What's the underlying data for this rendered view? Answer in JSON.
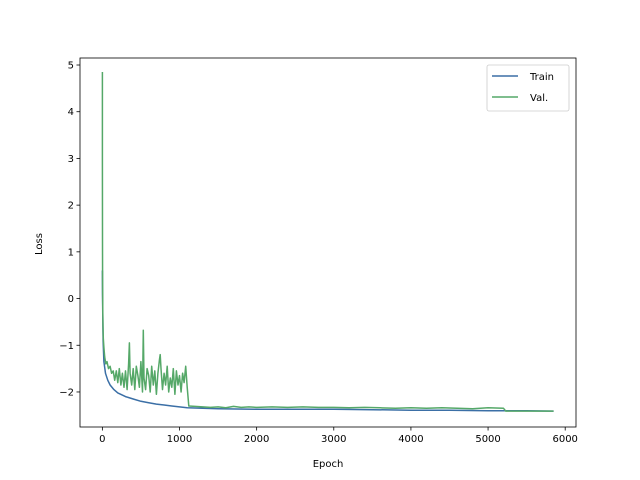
{
  "chart_data": {
    "type": "line",
    "xlabel": "Epoch",
    "ylabel": "Loss",
    "xlim": [
      -290,
      6140
    ],
    "ylim": [
      -2.75,
      5.15
    ],
    "xticks": [
      0,
      1000,
      2000,
      3000,
      4000,
      5000,
      6000
    ],
    "yticks": [
      -2,
      -1,
      0,
      1,
      2,
      3,
      4,
      5
    ],
    "xtick_labels": [
      "0",
      "1000",
      "2000",
      "3000",
      "4000",
      "5000",
      "6000"
    ],
    "ytick_labels": [
      "−2",
      "−1",
      "0",
      "1",
      "2",
      "3",
      "4",
      "5"
    ],
    "grid": false,
    "legend_position": "top-right",
    "series": [
      {
        "name": "Train",
        "color": "#3b6fa6",
        "x": [
          0,
          2,
          5,
          10,
          20,
          40,
          70,
          100,
          150,
          200,
          300,
          400,
          500,
          600,
          700,
          800,
          900,
          1000,
          1100,
          1500,
          2000,
          2500,
          3000,
          3500,
          4000,
          4500,
          5000,
          5500,
          5850
        ],
        "y": [
          0.6,
          0.1,
          -0.4,
          -0.9,
          -1.35,
          -1.6,
          -1.75,
          -1.85,
          -1.95,
          -2.02,
          -2.1,
          -2.15,
          -2.2,
          -2.23,
          -2.26,
          -2.28,
          -2.3,
          -2.32,
          -2.34,
          -2.36,
          -2.37,
          -2.37,
          -2.37,
          -2.38,
          -2.39,
          -2.39,
          -2.4,
          -2.4,
          -2.41
        ]
      },
      {
        "name": "Val.",
        "color": "#55a868",
        "x": [
          0,
          1,
          2,
          3,
          5,
          8,
          12,
          20,
          30,
          45,
          60,
          80,
          100,
          120,
          140,
          160,
          180,
          200,
          220,
          240,
          260,
          280,
          300,
          320,
          340,
          350,
          360,
          380,
          400,
          420,
          440,
          460,
          480,
          500,
          520,
          530,
          540,
          560,
          580,
          600,
          620,
          640,
          660,
          680,
          700,
          720,
          740,
          750,
          760,
          780,
          800,
          820,
          840,
          860,
          880,
          900,
          920,
          940,
          960,
          980,
          1000,
          1020,
          1040,
          1060,
          1080,
          1100,
          1120,
          1200,
          1300,
          1400,
          1500,
          1600,
          1700,
          1800,
          1900,
          2000,
          2200,
          2400,
          2600,
          2800,
          3000,
          3200,
          3400,
          3600,
          3800,
          4000,
          4200,
          4400,
          4600,
          4800,
          5000,
          5200,
          5230,
          5400,
          5600,
          5850
        ],
        "y": [
          4.85,
          3.0,
          1.2,
          0.3,
          -0.3,
          -0.6,
          -0.85,
          -1.05,
          -1.25,
          -1.4,
          -1.35,
          -1.5,
          -1.45,
          -1.6,
          -1.55,
          -1.75,
          -1.55,
          -1.8,
          -1.5,
          -1.85,
          -1.6,
          -1.9,
          -1.55,
          -1.95,
          -1.4,
          -0.95,
          -1.6,
          -1.85,
          -1.5,
          -1.95,
          -1.45,
          -1.65,
          -1.9,
          -1.35,
          -2.0,
          -0.68,
          -1.7,
          -1.95,
          -1.5,
          -1.65,
          -2.0,
          -1.45,
          -1.85,
          -1.55,
          -2.05,
          -1.6,
          -1.3,
          -1.2,
          -1.5,
          -1.95,
          -1.6,
          -1.85,
          -1.45,
          -2.0,
          -1.7,
          -1.9,
          -1.5,
          -2.05,
          -1.55,
          -1.85,
          -1.65,
          -2.0,
          -1.6,
          -1.8,
          -1.45,
          -1.9,
          -2.3,
          -2.31,
          -2.32,
          -2.33,
          -2.32,
          -2.34,
          -2.31,
          -2.33,
          -2.32,
          -2.33,
          -2.32,
          -2.33,
          -2.32,
          -2.33,
          -2.33,
          -2.34,
          -2.33,
          -2.34,
          -2.35,
          -2.34,
          -2.35,
          -2.34,
          -2.35,
          -2.36,
          -2.34,
          -2.35,
          -2.41,
          -2.41,
          -2.41,
          -2.41
        ]
      }
    ]
  }
}
